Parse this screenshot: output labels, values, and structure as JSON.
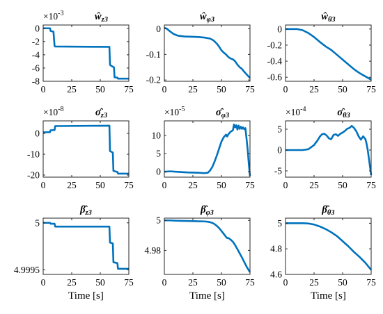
{
  "chart_data": [
    {
      "type": "line",
      "title": "ŵz3",
      "title_parts": [
        {
          "t": "ŵ",
          "sub": false
        },
        {
          "t": "z3",
          "sub": true
        }
      ],
      "exponent": "-3",
      "xlabel": "",
      "xlim": [
        0,
        75
      ],
      "ylim": [
        -8,
        0.5
      ],
      "xticks": [
        0,
        25,
        50,
        75
      ],
      "yticks": [
        0,
        -2,
        -4,
        -6,
        -8
      ],
      "ytick_labels": [
        "0",
        "-2",
        "-4",
        "-6",
        "-8"
      ],
      "series": [
        {
          "color": "#0072BD",
          "x": [
            0,
            6,
            6.5,
            9,
            10,
            10.5,
            58,
            58.5,
            59,
            62,
            62.5,
            65,
            65.5,
            75
          ],
          "y": [
            0,
            0,
            -0.4,
            -0.5,
            -2.7,
            -2.75,
            -2.8,
            -5.5,
            -5.6,
            -5.9,
            -7.4,
            -7.45,
            -7.6,
            -7.6
          ]
        }
      ]
    },
    {
      "type": "line",
      "title": "ŵφ3",
      "title_parts": [
        {
          "t": "ŵ",
          "sub": false
        },
        {
          "t": "φ3",
          "sub": true
        }
      ],
      "exponent": "",
      "xlabel": "",
      "xlim": [
        0,
        75
      ],
      "ylim": [
        -0.205,
        0.015
      ],
      "xticks": [
        0,
        25,
        50,
        75
      ],
      "yticks": [
        0,
        -0.1,
        -0.2
      ],
      "ytick_labels": [
        "0",
        "-0.1",
        "-0.2"
      ],
      "series": [
        {
          "color": "#0072BD",
          "x": [
            0,
            2,
            5,
            8,
            12,
            18,
            25,
            30,
            35,
            40,
            43,
            46,
            48,
            50,
            52,
            54,
            56,
            58,
            60,
            62,
            64,
            66,
            68,
            70,
            72,
            75
          ],
          "y": [
            0.004,
            0.001,
            -0.01,
            -0.02,
            -0.027,
            -0.03,
            -0.031,
            -0.032,
            -0.034,
            -0.038,
            -0.045,
            -0.058,
            -0.07,
            -0.084,
            -0.093,
            -0.1,
            -0.11,
            -0.116,
            -0.119,
            -0.127,
            -0.14,
            -0.15,
            -0.157,
            -0.168,
            -0.178,
            -0.192
          ]
        }
      ]
    },
    {
      "type": "line",
      "title": "ŵθ3",
      "title_parts": [
        {
          "t": "ŵ",
          "sub": false
        },
        {
          "t": "θ3",
          "sub": true
        }
      ],
      "exponent": "",
      "xlabel": "",
      "xlim": [
        0,
        75
      ],
      "ylim": [
        -0.65,
        0.05
      ],
      "xticks": [
        0,
        25,
        50,
        75
      ],
      "yticks": [
        0,
        -0.2,
        -0.4,
        -0.6
      ],
      "ytick_labels": [
        "0",
        "-0.2",
        "-0.4",
        "-0.6"
      ],
      "series": [
        {
          "color": "#0072BD",
          "x": [
            0,
            5,
            10,
            15,
            20,
            25,
            30,
            35,
            40,
            45,
            50,
            55,
            60,
            65,
            70,
            75
          ],
          "y": [
            0,
            0,
            0,
            -0.015,
            -0.05,
            -0.1,
            -0.16,
            -0.215,
            -0.26,
            -0.32,
            -0.38,
            -0.44,
            -0.5,
            -0.55,
            -0.59,
            -0.63
          ]
        }
      ]
    },
    {
      "type": "line",
      "title": "σ̂z3",
      "title_parts": [
        {
          "t": "σ̂",
          "sub": false
        },
        {
          "t": "z3",
          "sub": true
        }
      ],
      "exponent": "-8",
      "xlabel": "",
      "xlim": [
        0,
        75
      ],
      "ylim": [
        -21,
        6
      ],
      "xticks": [
        0,
        25,
        50,
        75
      ],
      "yticks": [
        0,
        -10,
        -20
      ],
      "ytick_labels": [
        "0",
        "-10",
        "-20"
      ],
      "series": [
        {
          "color": "#0072BD",
          "x": [
            0,
            6,
            6.5,
            10,
            10.5,
            58,
            58.5,
            61,
            61.5,
            65,
            65.5,
            75
          ],
          "y": [
            0.5,
            0.6,
            1.5,
            1.6,
            3.5,
            3.7,
            -8.5,
            -9.2,
            -18,
            -18.5,
            -19.3,
            -19.3
          ]
        }
      ]
    },
    {
      "type": "line",
      "title": "σ̂φ3",
      "title_parts": [
        {
          "t": "σ̂",
          "sub": false
        },
        {
          "t": "φ3",
          "sub": true
        }
      ],
      "exponent": "-5",
      "xlabel": "",
      "xlim": [
        0,
        75
      ],
      "ylim": [
        -1.5,
        14
      ],
      "xticks": [
        0,
        25,
        50,
        75
      ],
      "yticks": [
        10,
        5,
        0
      ],
      "ytick_labels": [
        "10",
        "5",
        "0"
      ],
      "series": [
        {
          "color": "#0072BD",
          "x": [
            0,
            5,
            10,
            20,
            30,
            35,
            38,
            40,
            42,
            44,
            46,
            48,
            50,
            52,
            54,
            55,
            56,
            58,
            60,
            61,
            62,
            63,
            64,
            65,
            66,
            67,
            68,
            69,
            70,
            71,
            72,
            73,
            74,
            75
          ],
          "y": [
            0,
            0.1,
            0,
            -0.2,
            -0.3,
            -0.4,
            -0.3,
            0.3,
            1.3,
            2.8,
            4.5,
            6.4,
            8.3,
            9.5,
            10.2,
            9.7,
            10.3,
            11,
            11.4,
            13,
            12.2,
            12.8,
            11.6,
            12.7,
            11.8,
            12.4,
            11.8,
            12.2,
            11.7,
            12,
            9,
            6,
            2,
            -1.2
          ]
        }
      ]
    },
    {
      "type": "line",
      "title": "σ̂θ3",
      "title_parts": [
        {
          "t": "σ̂",
          "sub": false
        },
        {
          "t": "θ3",
          "sub": true
        }
      ],
      "exponent": "-4",
      "xlabel": "",
      "xlim": [
        0,
        75
      ],
      "ylim": [
        -6.5,
        7
      ],
      "xticks": [
        0,
        25,
        50,
        75
      ],
      "yticks": [
        5,
        0,
        -5
      ],
      "ytick_labels": [
        "5",
        "0",
        "-5"
      ],
      "series": [
        {
          "color": "#0072BD",
          "x": [
            0,
            5,
            10,
            15,
            20,
            25,
            28,
            30,
            32,
            34,
            36,
            38,
            40,
            42,
            44,
            46,
            48,
            50,
            52,
            54,
            56,
            58,
            60,
            62,
            64,
            66,
            68,
            70,
            71,
            72,
            73,
            74,
            75
          ],
          "y": [
            0,
            0,
            0,
            0,
            0.2,
            1.2,
            2.3,
            3.2,
            3.8,
            3.9,
            3.5,
            2.8,
            2.6,
            3.6,
            3.8,
            3.4,
            3.9,
            4.2,
            4.6,
            5.1,
            5.3,
            5.8,
            5.3,
            4.5,
            3.3,
            2.5,
            3.3,
            2.6,
            1.5,
            0,
            -2,
            -4,
            -6
          ]
        }
      ]
    },
    {
      "type": "line",
      "title": "β̂z3",
      "title_parts": [
        {
          "t": "β̂",
          "sub": false
        },
        {
          "t": "z3",
          "sub": true
        }
      ],
      "exponent": "",
      "xlabel": "Time [s]",
      "xlim": [
        0,
        75
      ],
      "ylim": [
        4.99945,
        5.00005
      ],
      "xticks": [
        0,
        25,
        50,
        75
      ],
      "yticks": [
        5,
        4.9995
      ],
      "ytick_labels": [
        "5",
        "4.9995"
      ],
      "series": [
        {
          "color": "#0072BD",
          "x": [
            0,
            6,
            6.5,
            10,
            10.5,
            58,
            58.5,
            61,
            61.5,
            65,
            65.5,
            75
          ],
          "y": [
            5.0,
            5.0,
            4.99999,
            4.99999,
            4.99996,
            4.99996,
            4.99979,
            4.99978,
            4.99958,
            4.99957,
            4.99951,
            4.99951
          ]
        }
      ]
    },
    {
      "type": "line",
      "title": "β̂φ3",
      "title_parts": [
        {
          "t": "β̂",
          "sub": false
        },
        {
          "t": "φ3",
          "sub": true
        }
      ],
      "exponent": "",
      "xlabel": "Time [s]",
      "xlim": [
        0,
        75
      ],
      "ylim": [
        4.964,
        5.0015
      ],
      "xticks": [
        0,
        25,
        50,
        75
      ],
      "yticks": [
        5,
        4.98
      ],
      "ytick_labels": [
        "5",
        "4.98"
      ],
      "series": [
        {
          "color": "#0072BD",
          "x": [
            0,
            5,
            10,
            15,
            20,
            25,
            30,
            35,
            38,
            40,
            42,
            44,
            46,
            48,
            50,
            52,
            54,
            55,
            56,
            58,
            60,
            62,
            64,
            66,
            68,
            70,
            72,
            75
          ],
          "y": [
            5.0,
            5.0,
            4.9998,
            4.9997,
            4.9996,
            4.9995,
            4.9994,
            4.9993,
            4.9991,
            4.9988,
            4.9983,
            4.9975,
            4.9963,
            4.9948,
            4.993,
            4.991,
            4.989,
            4.9882,
            4.9883,
            4.9872,
            4.9858,
            4.9835,
            4.9808,
            4.978,
            4.9752,
            4.9722,
            4.9692,
            4.9655
          ]
        }
      ]
    },
    {
      "type": "line",
      "title": "β̂θ3",
      "title_parts": [
        {
          "t": "β̂",
          "sub": false
        },
        {
          "t": "θ3",
          "sub": true
        }
      ],
      "exponent": "",
      "xlabel": "Time [s]",
      "xlim": [
        0,
        75
      ],
      "ylim": [
        4.6,
        5.04
      ],
      "xticks": [
        0,
        25,
        50,
        75
      ],
      "yticks": [
        5,
        4.8,
        4.6
      ],
      "ytick_labels": [
        "5",
        "4.8",
        "4.6"
      ],
      "series": [
        {
          "color": "#0072BD",
          "x": [
            0,
            5,
            10,
            15,
            20,
            25,
            30,
            35,
            40,
            45,
            50,
            55,
            60,
            65,
            70,
            75
          ],
          "y": [
            5.0,
            5.0,
            5.0,
            5.0,
            4.998,
            4.99,
            4.975,
            4.955,
            4.93,
            4.9,
            4.86,
            4.82,
            4.775,
            4.735,
            4.69,
            4.635
          ]
        }
      ]
    }
  ]
}
